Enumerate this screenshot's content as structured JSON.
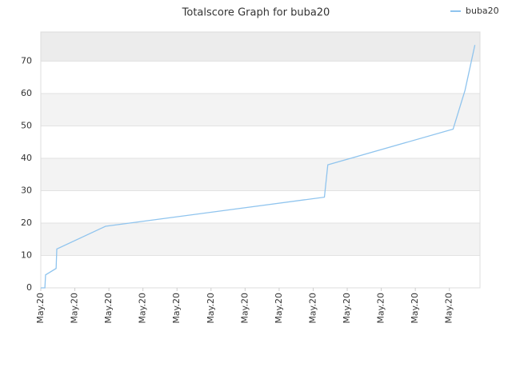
{
  "chart_data": {
    "type": "line",
    "title": "Totalscore Graph for buba20",
    "xlim": [
      0,
      12.9
    ],
    "xticks": [
      {
        "value": 0,
        "label": "May.20"
      },
      {
        "value": 1,
        "label": "May.20"
      },
      {
        "value": 2,
        "label": "May.20"
      },
      {
        "value": 3,
        "label": "May.20"
      },
      {
        "value": 4,
        "label": "May.20"
      },
      {
        "value": 5,
        "label": "May.20"
      },
      {
        "value": 6,
        "label": "May.20"
      },
      {
        "value": 7,
        "label": "May.20"
      },
      {
        "value": 8,
        "label": "May.20"
      },
      {
        "value": 9,
        "label": "May.20"
      },
      {
        "value": 10,
        "label": "May.20"
      },
      {
        "value": 11,
        "label": "May.20"
      },
      {
        "value": 12,
        "label": "May.20"
      }
    ],
    "ylim": [
      0,
      79
    ],
    "yticks": [
      0,
      10,
      20,
      30,
      40,
      50,
      60,
      70
    ],
    "grid": true,
    "legend": "top-right",
    "x": [
      0,
      0.12,
      0.14,
      0.45,
      0.47,
      1.9,
      8.33,
      8.43,
      12.11,
      12.46,
      12.75
    ],
    "series": [
      {
        "name": "buba20",
        "color": "#8fc4ee",
        "values": [
          0,
          0,
          4,
          6,
          12,
          19,
          28,
          38,
          49,
          61,
          75
        ]
      }
    ]
  }
}
